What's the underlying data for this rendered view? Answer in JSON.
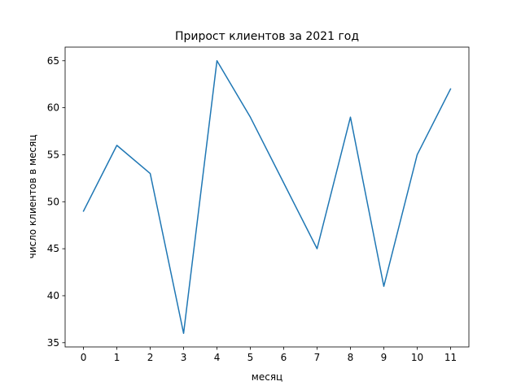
{
  "chart_data": {
    "type": "line",
    "title": "Прирост клиентов за 2021 год",
    "xlabel": "месяц",
    "ylabel": "число клиентов в месяц",
    "x": [
      0,
      1,
      2,
      3,
      4,
      5,
      6,
      7,
      8,
      9,
      10,
      11
    ],
    "series": [
      {
        "values": [
          49,
          56,
          53,
          36,
          65,
          59,
          52,
          45,
          59,
          41,
          55,
          62
        ]
      }
    ],
    "xticks": [
      0,
      1,
      2,
      3,
      4,
      5,
      6,
      7,
      8,
      9,
      10,
      11
    ],
    "yticks": [
      35,
      40,
      45,
      50,
      55,
      60,
      65
    ],
    "xlim": [
      -0.55,
      11.55
    ],
    "ylim": [
      34.55,
      66.45
    ],
    "grid": false,
    "line_color": "#1f77b4"
  }
}
